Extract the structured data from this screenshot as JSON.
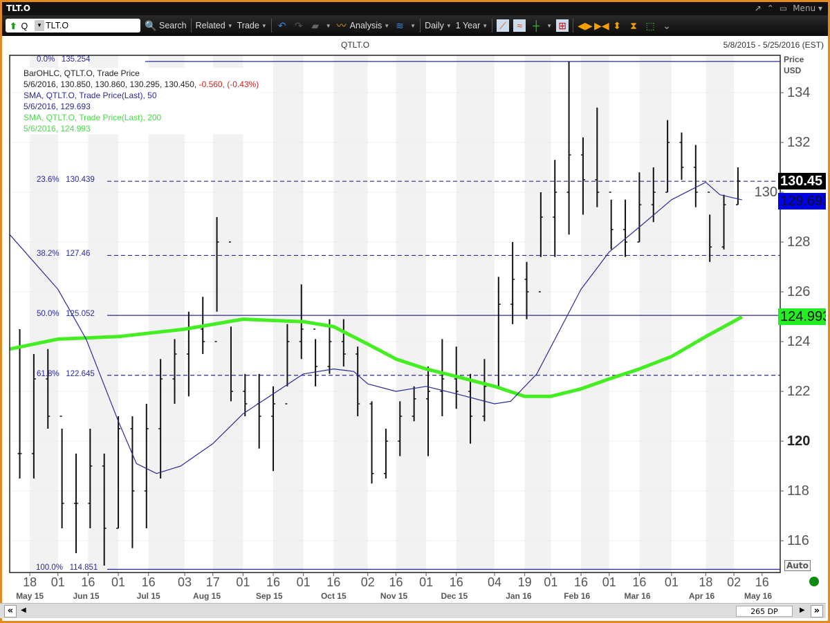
{
  "window": {
    "title": "TLT.O",
    "menu_label": "Menu",
    "controls": [
      "pin-icon",
      "collapse-icon",
      "maximize-icon"
    ]
  },
  "toolbar": {
    "ric_prefix": "Q",
    "ric_value": "TLT.O",
    "search": "Search",
    "related": "Related",
    "trade": "Trade",
    "analysis": "Analysis",
    "interval": "Daily",
    "range": "1 Year"
  },
  "chart_header": {
    "symbol": "QTLT.O",
    "date_range": "5/8/2015 - 5/25/2016 (EST)"
  },
  "legend": {
    "line1": "BarOHLC, QTLT.O, Trade Price",
    "line2_values": "5/6/2016, 130.850, 130.860, 130.295, 130.450,",
    "line2_change": "-0.560, (-0.43%)",
    "line3": "SMA, QTLT.O, Trade Price(Last),  50",
    "line4": "5/6/2016, 129.693",
    "line5": "SMA, QTLT.O, Trade Price(Last),  200",
    "line6": "5/6/2016, 124.993"
  },
  "colors": {
    "bars": "#111111",
    "sma50": "#2a2a9a",
    "sma200": "#44ee22",
    "fib": "#2a2a9a",
    "last_tag": "#000000",
    "sma50_tag": "#0000ee",
    "sma200_tag": "#22ee22",
    "frame": "#e08a20"
  },
  "axis": {
    "unit_label": "Price",
    "currency": "USD",
    "auto_label": "Auto",
    "dp_label": "265 DP"
  },
  "price_tags": {
    "last": "130.45",
    "sma50": "129.693",
    "sma200": "124.993"
  },
  "chart_data": {
    "type": "ohlc",
    "x_range": [
      "2015-05-08",
      "2016-05-25"
    ],
    "ylim": [
      114.4,
      135.9
    ],
    "yticks": [
      116,
      118,
      120,
      122,
      124,
      126,
      128,
      130,
      132,
      134
    ],
    "xticks": [
      {
        "date": "2015-05-18",
        "label": "18"
      },
      {
        "date": "2015-06-01",
        "label": "01"
      },
      {
        "date": "2015-06-16",
        "label": "16"
      },
      {
        "date": "2015-07-01",
        "label": "01"
      },
      {
        "date": "2015-07-16",
        "label": "16"
      },
      {
        "date": "2015-08-03",
        "label": "03"
      },
      {
        "date": "2015-08-17",
        "label": "17"
      },
      {
        "date": "2015-09-01",
        "label": "01"
      },
      {
        "date": "2015-09-16",
        "label": "16"
      },
      {
        "date": "2015-10-01",
        "label": "01"
      },
      {
        "date": "2015-10-16",
        "label": "16"
      },
      {
        "date": "2015-11-02",
        "label": "02"
      },
      {
        "date": "2015-11-16",
        "label": "16"
      },
      {
        "date": "2015-12-01",
        "label": "01"
      },
      {
        "date": "2015-12-16",
        "label": "16"
      },
      {
        "date": "2016-01-04",
        "label": "04"
      },
      {
        "date": "2016-01-19",
        "label": "19"
      },
      {
        "date": "2016-02-01",
        "label": "01"
      },
      {
        "date": "2016-02-16",
        "label": "16"
      },
      {
        "date": "2016-03-01",
        "label": "01"
      },
      {
        "date": "2016-03-16",
        "label": "16"
      },
      {
        "date": "2016-04-01",
        "label": "01"
      },
      {
        "date": "2016-04-18",
        "label": "18"
      },
      {
        "date": "2016-05-02",
        "label": "02"
      },
      {
        "date": "2016-05-16",
        "label": "16"
      }
    ],
    "months": [
      {
        "date": "2015-05-18",
        "label": "May 15"
      },
      {
        "date": "2015-06-15",
        "label": "Jun 15"
      },
      {
        "date": "2015-07-16",
        "label": "Jul 15"
      },
      {
        "date": "2015-08-14",
        "label": "Aug 15"
      },
      {
        "date": "2015-09-14",
        "label": "Sep 15"
      },
      {
        "date": "2015-10-16",
        "label": "Oct 15"
      },
      {
        "date": "2015-11-15",
        "label": "Nov 15"
      },
      {
        "date": "2015-12-15",
        "label": "Dec 15"
      },
      {
        "date": "2016-01-16",
        "label": "Jan 16"
      },
      {
        "date": "2016-02-14",
        "label": "Feb 16"
      },
      {
        "date": "2016-03-15",
        "label": "Mar 16"
      },
      {
        "date": "2016-04-16",
        "label": "Apr 16"
      },
      {
        "date": "2016-05-14",
        "label": "May 16"
      }
    ],
    "bars_weekly": [
      [
        "2015-05-11",
        124.5,
        118.5,
        119.5
      ],
      [
        "2015-05-18",
        123.5,
        118.5,
        122.5
      ],
      [
        "2015-05-25",
        123.7,
        120.5,
        121
      ],
      [
        "2015-06-01",
        120.5,
        116.5,
        117.5
      ],
      [
        "2015-06-08",
        119.5,
        115.5,
        117.5
      ],
      [
        "2015-06-15",
        120.5,
        116.5,
        119
      ],
      [
        "2015-06-22",
        119.5,
        115,
        116.5
      ],
      [
        "2015-06-29",
        121,
        116.5,
        120.5
      ],
      [
        "2015-07-06",
        121,
        115.7,
        118
      ],
      [
        "2015-07-13",
        121.5,
        116.5,
        120.5
      ],
      [
        "2015-07-20",
        123.3,
        118.5,
        122.5
      ],
      [
        "2015-07-27",
        124.1,
        121.5,
        123.5
      ],
      [
        "2015-08-03",
        125.2,
        121.8,
        124.5
      ],
      [
        "2015-08-10",
        125.8,
        123.5,
        124
      ],
      [
        "2015-08-17",
        129,
        125.2,
        128
      ],
      [
        "2015-08-24",
        124.6,
        121.6,
        122
      ],
      [
        "2015-08-31",
        122.7,
        121,
        121.5
      ],
      [
        "2015-09-07",
        122.7,
        119.7,
        121
      ],
      [
        "2015-09-14",
        122.2,
        118.8,
        121.5
      ],
      [
        "2015-09-21",
        124.7,
        122.2,
        124
      ],
      [
        "2015-09-28",
        126.3,
        123.3,
        124.5
      ],
      [
        "2015-10-05",
        124.1,
        122.2,
        123
      ],
      [
        "2015-10-12",
        124.9,
        122.7,
        124
      ],
      [
        "2015-10-19",
        124.9,
        123,
        123.5
      ],
      [
        "2015-10-26",
        123.8,
        121,
        121.5
      ],
      [
        "2015-11-02",
        121.6,
        118.3,
        118.7
      ],
      [
        "2015-11-09",
        120.5,
        118.5,
        120
      ],
      [
        "2015-11-16",
        121.6,
        119.4,
        121
      ],
      [
        "2015-11-23",
        122.2,
        120.8,
        121.7
      ],
      [
        "2015-11-30",
        123,
        119.4,
        122
      ],
      [
        "2015-12-07",
        124.1,
        121,
        122.5
      ],
      [
        "2015-12-14",
        123.8,
        121.3,
        122
      ],
      [
        "2015-12-21",
        122.7,
        119.9,
        121
      ],
      [
        "2015-12-28",
        123.3,
        120.8,
        122.2
      ],
      [
        "2016-01-04",
        126.6,
        122.2,
        125.5
      ],
      [
        "2016-01-11",
        128,
        124.7,
        126.5
      ],
      [
        "2016-01-18",
        127.2,
        124.9,
        126
      ],
      [
        "2016-01-25",
        130,
        127.4,
        129
      ],
      [
        "2016-02-01",
        131.3,
        127.4,
        130
      ],
      [
        "2016-02-08",
        135.25,
        128.3,
        131.5
      ],
      [
        "2016-02-15",
        132.2,
        129.1,
        130.5
      ],
      [
        "2016-02-22",
        133.4,
        129.4,
        130
      ],
      [
        "2016-02-29",
        129.7,
        127.7,
        128.5
      ],
      [
        "2016-03-07",
        129.7,
        127.4,
        128
      ],
      [
        "2016-03-14",
        130.8,
        128,
        129.5
      ],
      [
        "2016-03-21",
        131,
        128.8,
        130
      ],
      [
        "2016-03-28",
        132.9,
        130,
        132
      ],
      [
        "2016-04-04",
        132.4,
        130.5,
        131
      ],
      [
        "2016-04-11",
        131.9,
        129.4,
        130
      ],
      [
        "2016-04-18",
        129.1,
        127.2,
        127.8
      ],
      [
        "2016-04-25",
        129.9,
        127.7,
        129.5
      ],
      [
        "2016-05-02",
        131,
        129.5,
        130.45
      ]
    ],
    "series": [
      {
        "name": "SMA, QTLT.O, Trade Price(Last), 50",
        "points": [
          [
            "2015-05-08",
            128.3
          ],
          [
            "2015-06-01",
            126.1
          ],
          [
            "2015-06-15",
            124.1
          ],
          [
            "2015-07-01",
            120.8
          ],
          [
            "2015-07-10",
            119.1
          ],
          [
            "2015-07-20",
            118.7
          ],
          [
            "2015-08-01",
            119
          ],
          [
            "2015-08-17",
            119.9
          ],
          [
            "2015-09-01",
            121.1
          ],
          [
            "2015-09-16",
            121.9
          ],
          [
            "2015-10-01",
            122.7
          ],
          [
            "2015-10-16",
            122.9
          ],
          [
            "2015-10-26",
            122.8
          ],
          [
            "2015-11-02",
            122.3
          ],
          [
            "2015-11-16",
            122
          ],
          [
            "2015-12-01",
            122.2
          ],
          [
            "2015-12-16",
            121.9
          ],
          [
            "2016-01-04",
            121.5
          ],
          [
            "2016-01-12",
            121.6
          ],
          [
            "2016-01-25",
            122.7
          ],
          [
            "2016-02-05",
            124.4
          ],
          [
            "2016-02-16",
            126.1
          ],
          [
            "2016-03-01",
            127.6
          ],
          [
            "2016-03-16",
            128.6
          ],
          [
            "2016-04-01",
            129.7
          ],
          [
            "2016-04-18",
            130.4
          ],
          [
            "2016-04-25",
            129.9
          ],
          [
            "2016-05-06",
            129.693
          ]
        ]
      },
      {
        "name": "SMA, QTLT.O, Trade Price(Last), 200",
        "points": [
          [
            "2015-05-08",
            123.7
          ],
          [
            "2015-06-01",
            124.1
          ],
          [
            "2015-07-01",
            124.2
          ],
          [
            "2015-08-03",
            124.5
          ],
          [
            "2015-09-01",
            124.9
          ],
          [
            "2015-10-01",
            124.8
          ],
          [
            "2015-10-16",
            124.6
          ],
          [
            "2015-11-02",
            123.9
          ],
          [
            "2015-11-16",
            123.3
          ],
          [
            "2015-12-01",
            122.9
          ],
          [
            "2015-12-16",
            122.6
          ],
          [
            "2016-01-04",
            122.2
          ],
          [
            "2016-01-19",
            121.8
          ],
          [
            "2016-02-01",
            121.8
          ],
          [
            "2016-02-16",
            122.1
          ],
          [
            "2016-03-01",
            122.5
          ],
          [
            "2016-03-16",
            122.9
          ],
          [
            "2016-04-01",
            123.4
          ],
          [
            "2016-04-18",
            124.2
          ],
          [
            "2016-05-06",
            124.993
          ]
        ]
      }
    ],
    "fibonacci": {
      "start_date": "2015-06-26",
      "levels": [
        {
          "pct": "0.0%",
          "value": 135.254,
          "style": "solid"
        },
        {
          "pct": "23.6%",
          "value": 130.439,
          "style": "dashed"
        },
        {
          "pct": "38.2%",
          "value": 127.46,
          "style": "dashed"
        },
        {
          "pct": "50.0%",
          "value": 125.052,
          "style": "solid"
        },
        {
          "pct": "61.8%",
          "value": 122.645,
          "style": "dashed"
        },
        {
          "pct": "100.0%",
          "value": 114.851,
          "style": "solid"
        }
      ]
    }
  }
}
